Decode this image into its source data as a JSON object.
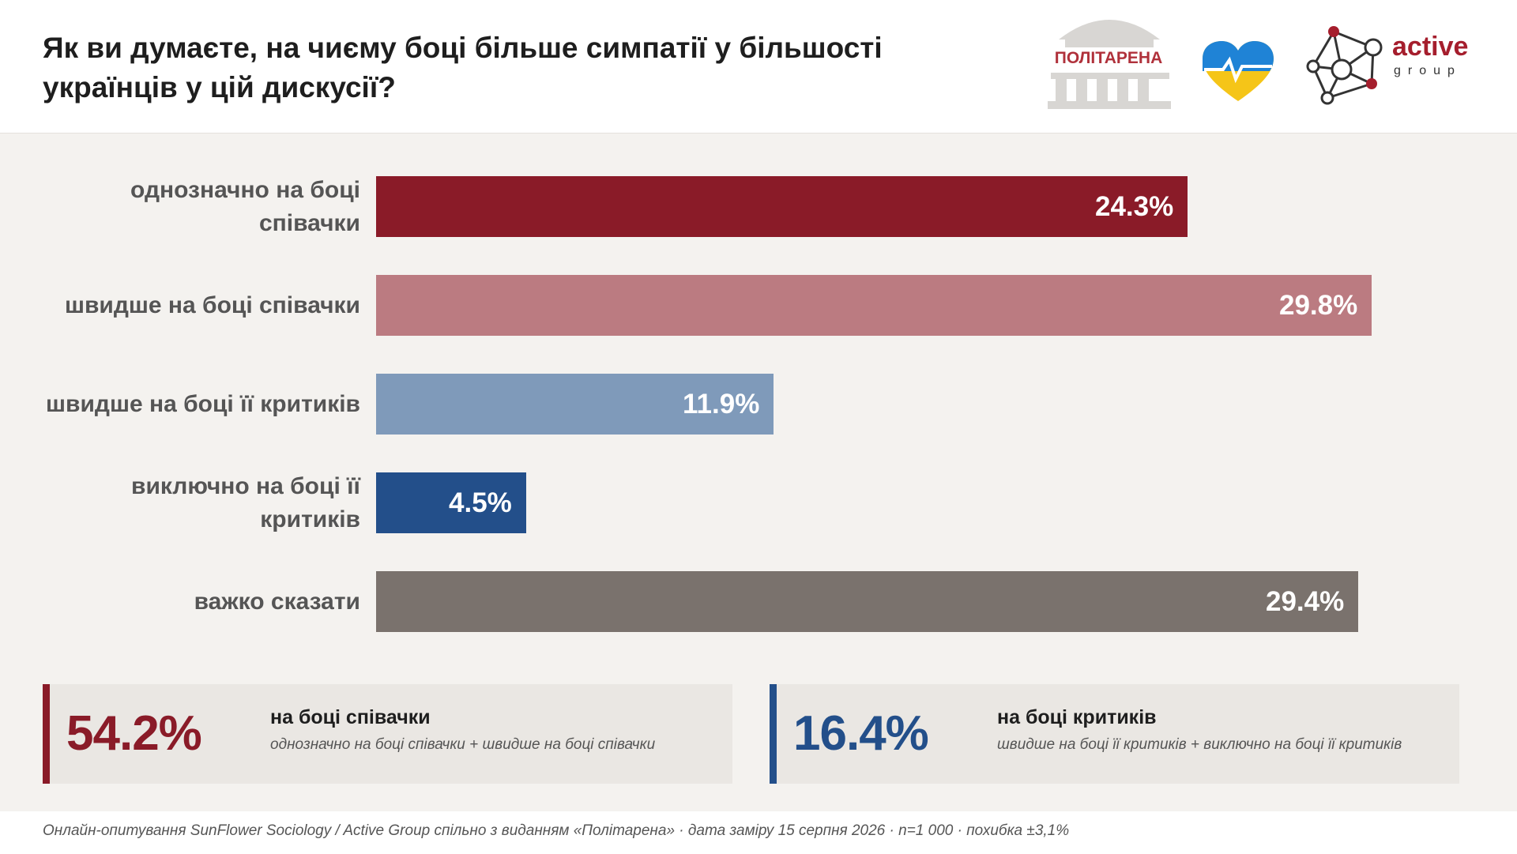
{
  "title": "Як ви думаєте, на чиєму боці більше симпатії у більшості українців у цій дискусії?",
  "logos": {
    "politarena": "ПОЛІТАРЕНА",
    "active_word": "active",
    "group_word": "group"
  },
  "chart_data": {
    "type": "bar",
    "orientation": "horizontal",
    "categories": [
      "однозначно на боці співачки",
      "швидше на боці співачки",
      "швидше на боці її критиків",
      "виключно на боці її критиків",
      "важко сказати"
    ],
    "values": [
      24.3,
      29.8,
      11.9,
      4.5,
      29.4
    ],
    "value_labels": [
      "24.3%",
      "29.8%",
      "11.9%",
      "4.5%",
      "29.4%"
    ],
    "colors": [
      "#8a1b28",
      "#bb7b81",
      "#7f9aba",
      "#234f8a",
      "#7a726d"
    ],
    "value_max": 29.8,
    "grid": false
  },
  "summary": [
    {
      "percent": "54.2%",
      "title": "на боці співачки",
      "subtitle": "однозначно на боці співачки + швидше на боці співачки",
      "color": "#8a1b28"
    },
    {
      "percent": "16.4%",
      "title": "на боці критиків",
      "subtitle": "швидше на боці її критиків + виключно на боці її критиків",
      "color": "#234f8a"
    }
  ],
  "footnote": "Онлайн-опитування SunFlower Sociology / Active Group спільно з виданням «Політарена» · дата заміру 15 серпня 2026 · n=1 000 · похибка ±3,1%"
}
